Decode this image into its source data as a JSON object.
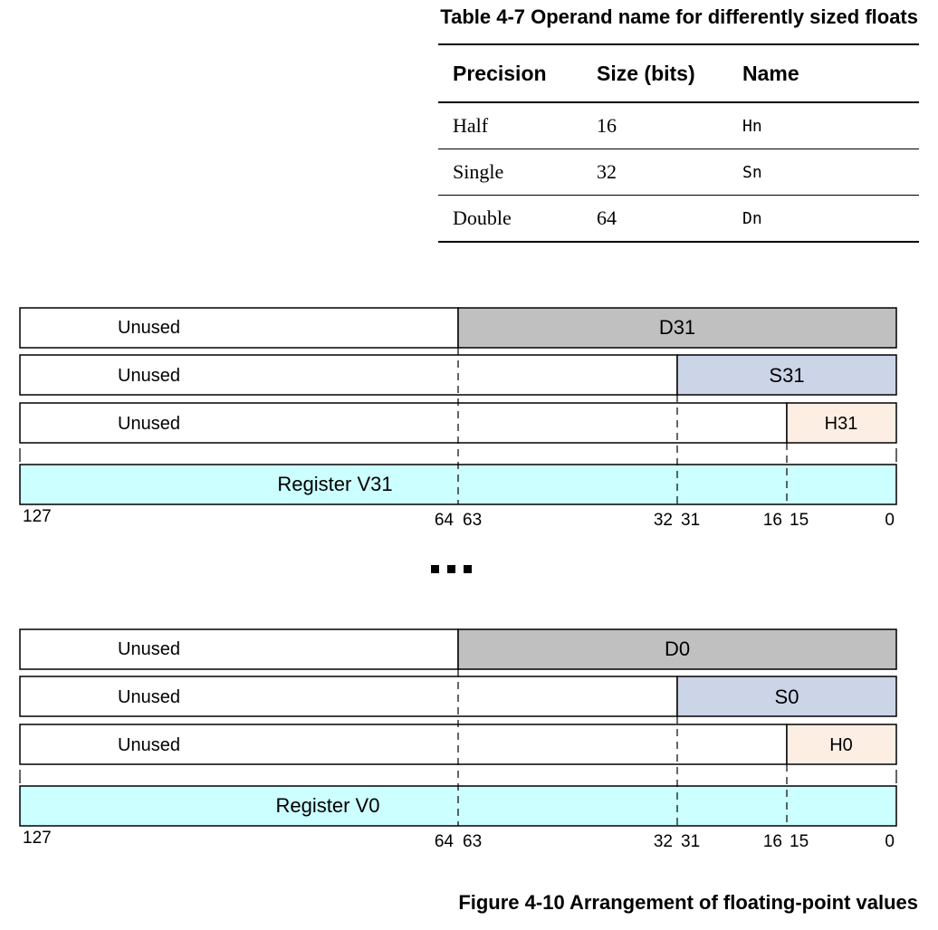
{
  "table": {
    "caption": "Table 4-7 Operand name for differently sized floats",
    "headers": [
      "Precision",
      "Size (bits)",
      "Name"
    ],
    "rows": [
      {
        "precision": "Half",
        "size": "16",
        "name": "Hn"
      },
      {
        "precision": "Single",
        "size": "32",
        "name": "Sn"
      },
      {
        "precision": "Double",
        "size": "64",
        "name": "Dn"
      }
    ]
  },
  "figure": {
    "caption": "Figure 4-10 Arrangement of floating-point values",
    "unused_label": "Unused",
    "ellipsis": "...",
    "colors": {
      "double": "#c0c0c0",
      "single": "#ccd5e8",
      "half": "#fdeee3",
      "register": "#ccffff"
    },
    "bit_labels": {
      "b127": "127",
      "b64": "64",
      "b63": "63",
      "b32": "32",
      "b31": "31",
      "b16": "16",
      "b15": "15",
      "b0": "0"
    },
    "groups": [
      {
        "double": "D31",
        "single": "S31",
        "half": "H31",
        "register": "Register V31"
      },
      {
        "double": "D0",
        "single": "S0",
        "half": "H0",
        "register": "Register V0"
      }
    ]
  }
}
